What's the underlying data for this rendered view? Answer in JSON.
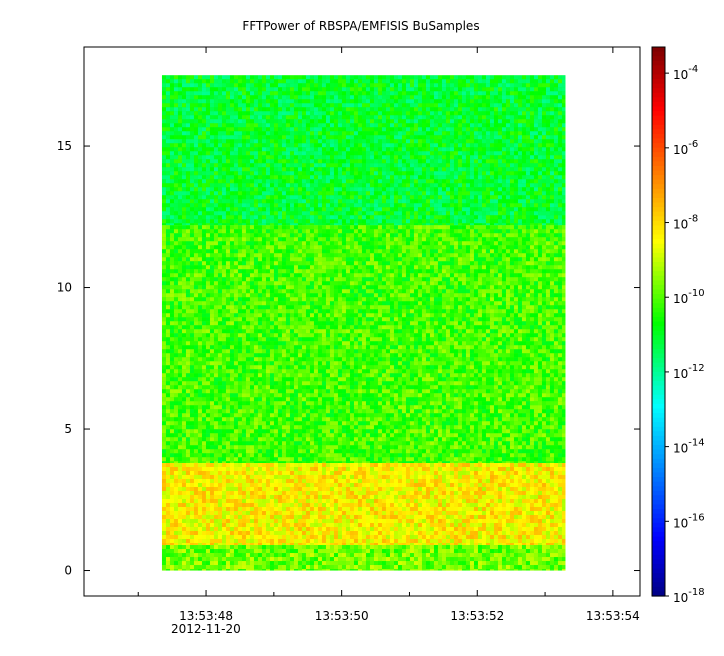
{
  "chart_data": {
    "type": "heatmap",
    "title": "FFTPower of RBSPA/EMFISIS  BuSamples",
    "xlabel": "",
    "ylabel": "",
    "date_label": "2012-11-20",
    "x_tick_labels": [
      "13:53:48",
      "13:53:50",
      "13:53:52",
      "13:53:54"
    ],
    "x_tick_seconds": [
      48,
      50,
      52,
      54
    ],
    "x_minor_tick_seconds": [
      47,
      49,
      51,
      53
    ],
    "xlim_seconds": [
      46.2,
      54.4
    ],
    "data_x_range_seconds": [
      47.35,
      53.3
    ],
    "y_ticks": [
      0,
      5,
      10,
      15
    ],
    "ylim": [
      -0.9,
      18.5
    ],
    "data_y_range": [
      0,
      17.5
    ],
    "colorbar": {
      "scale": "log",
      "range_exp": [
        -18,
        -3.3
      ],
      "tick_exps": [
        -4,
        -6,
        -8,
        -10,
        -12,
        -14,
        -16,
        -18
      ],
      "tick_base": "10"
    },
    "bands": [
      {
        "y_range": [
          12.2,
          17.5
        ],
        "typical_log10_power": -11.0
      },
      {
        "y_range": [
          3.8,
          12.2
        ],
        "typical_log10_power": -10.1
      },
      {
        "y_range": [
          0.9,
          3.8
        ],
        "typical_log10_power": -8.3,
        "note_visible": false
      },
      {
        "y_range": [
          0.0,
          0.9
        ],
        "typical_log10_power": -9.7
      }
    ]
  }
}
